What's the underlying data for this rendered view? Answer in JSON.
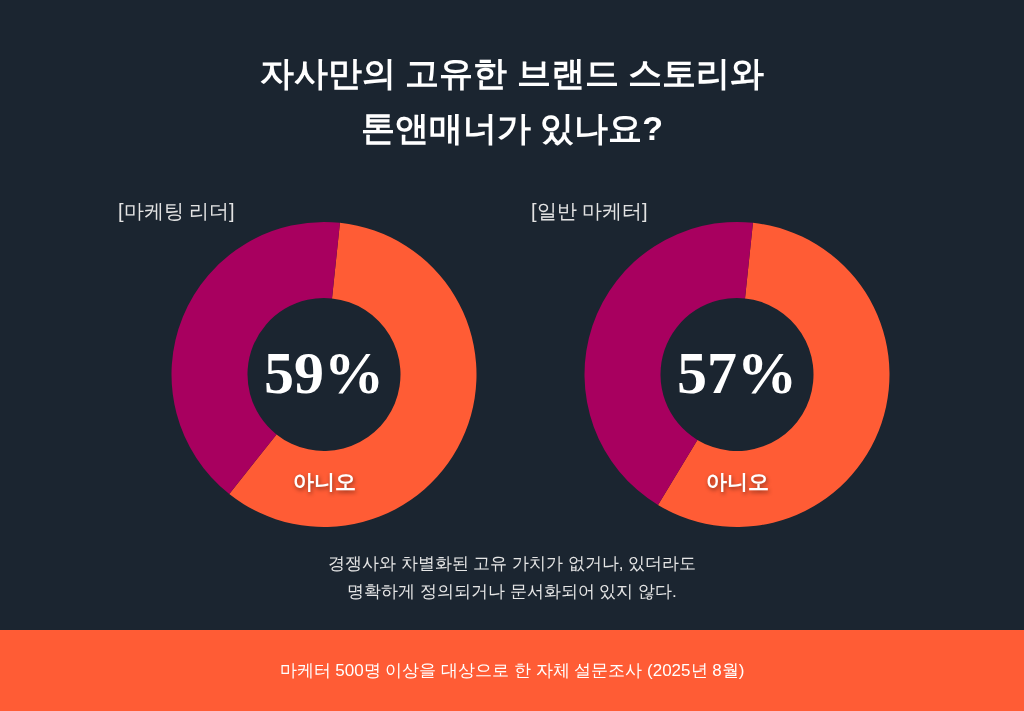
{
  "chart_data": [
    {
      "type": "other",
      "title": "자사만의 고유한 브랜드 스토리와\n톤앤매너가 있나요?"
    },
    {
      "type": "donut",
      "title": "[마케팅 리더]",
      "categories": [
        "아니오",
        null
      ],
      "values": [
        59,
        41
      ],
      "colors": [
        "#ff5c35",
        "#a8005f"
      ],
      "value_labels": [
        "59%",
        null
      ]
    },
    {
      "type": "donut",
      "title": "[일반 마케터]",
      "categories": [
        "아니오",
        null
      ],
      "values": [
        57,
        43
      ],
      "colors": [
        "#ff5c35",
        "#a8005f"
      ],
      "value_labels": [
        "57%",
        null
      ]
    },
    {
      "type": "other",
      "annotations": [
        "경쟁사와 차별화된 고유 가치가 없거나, 있더라도\n명확하게 정의되거나 문서화되어 있지 않다.",
        "마케터 500명 이상을 대상으로 한 자체 설문조사 (2025년 8월)"
      ]
    }
  ]
}
